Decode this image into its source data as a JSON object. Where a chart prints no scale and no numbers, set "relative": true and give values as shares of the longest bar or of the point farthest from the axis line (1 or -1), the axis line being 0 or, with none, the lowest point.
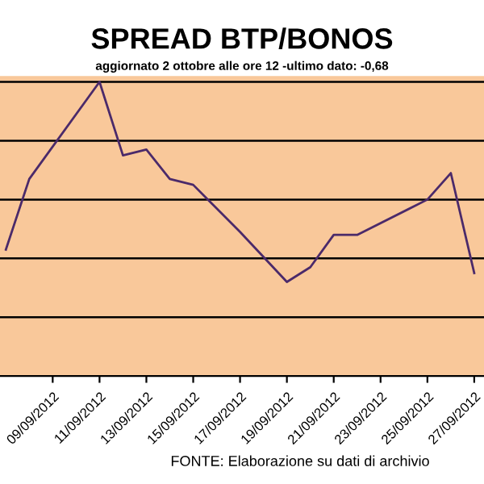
{
  "chart_data": {
    "type": "line",
    "title": "SPREAD BTP/BONOS",
    "subtitle": "aggiornato 2 ottobre alle ore 12 -ultimo dato: -0,68",
    "relative": true,
    "x": [
      "2012-09-07",
      "2012-09-08",
      "2012-09-11",
      "2012-09-12",
      "2012-09-13",
      "2012-09-14",
      "2012-09-15",
      "2012-09-17",
      "2012-09-19",
      "2012-09-20",
      "2012-09-21",
      "2012-09-22",
      "2012-09-25",
      "2012-09-26",
      "2012-09-27"
    ],
    "series": [
      {
        "color": "#4b2a6a",
        "values": [
          0.43,
          0.67,
          1.0,
          0.75,
          0.77,
          0.67,
          0.65,
          0.49,
          0.32,
          0.37,
          0.48,
          0.48,
          0.6,
          0.69,
          0.35
        ]
      }
    ],
    "xlim": [
      "2012-09-06T18:00",
      "2012-09-27T10:00"
    ],
    "xticks": [
      {
        "value": "2012-09-09",
        "label": "09/09/2012"
      },
      {
        "value": "2012-09-11",
        "label": "11/09/2012"
      },
      {
        "value": "2012-09-13",
        "label": "13/09/2012"
      },
      {
        "value": "2012-09-15",
        "label": "15/09/2012"
      },
      {
        "value": "2012-09-17",
        "label": "17/09/2012"
      },
      {
        "value": "2012-09-19",
        "label": "19/09/2012"
      },
      {
        "value": "2012-09-21",
        "label": "21/09/2012"
      },
      {
        "value": "2012-09-23",
        "label": "23/09/2012"
      },
      {
        "value": "2012-09-25",
        "label": "25/09/2012"
      },
      {
        "value": "2012-09-27",
        "label": "27/09/2012"
      }
    ],
    "grid": "y",
    "marker": "none",
    "line_style": "solid",
    "legend": false,
    "annotations": [
      "FONTE: Elaborazione su dati di archivio"
    ]
  }
}
